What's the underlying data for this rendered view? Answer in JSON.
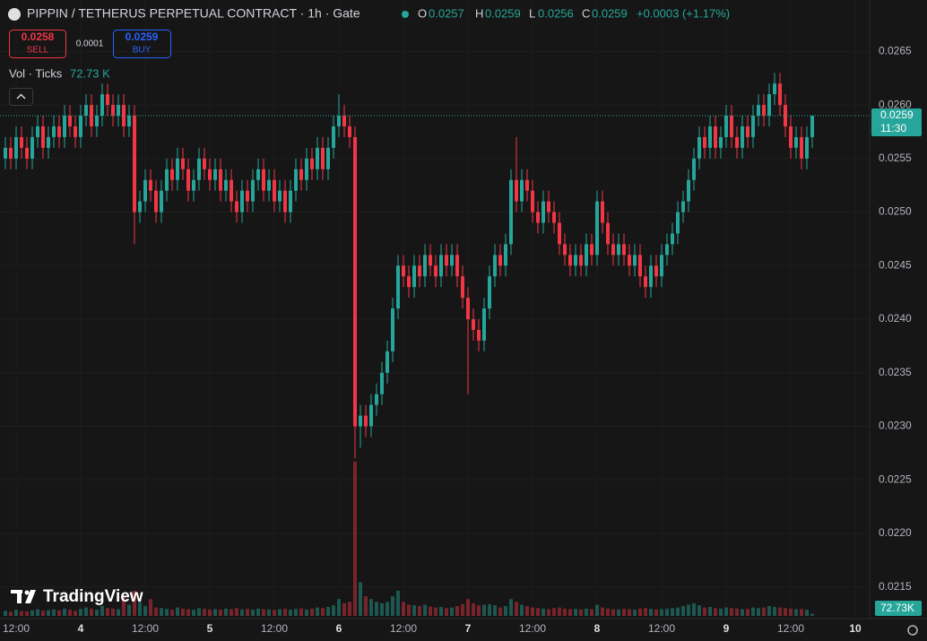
{
  "chart_data": {
    "type": "candlestick",
    "title": "PIPPIN / TETHERUS PERPETUAL CONTRACT · 1h · Gate",
    "ohlc_readout": {
      "open_label": "O",
      "open": 0.0257,
      "high_label": "H",
      "high": 0.0259,
      "low_label": "L",
      "low": 0.0256,
      "close_label": "C",
      "close": 0.0259,
      "change": "+0.0003 (+1.17%)"
    },
    "trade": {
      "sell_price": 0.0258,
      "sell_label": "SELL",
      "spread": 0.0001,
      "buy_price": 0.0259,
      "buy_label": "BUY"
    },
    "volume_readout": {
      "label": "Vol · Ticks",
      "value": "72.73 K",
      "axis_label": "72.73K"
    },
    "last_price": 0.0259,
    "countdown": "11:30",
    "brand": "TradingView",
    "up_color": "#26a69a",
    "down_color": "#f23645",
    "categories": [
      null,
      null,
      "12:00",
      null,
      null,
      null,
      null,
      null,
      null,
      null,
      null,
      null,
      null,
      null,
      "4",
      null,
      null,
      null,
      null,
      null,
      null,
      null,
      null,
      null,
      null,
      null,
      "12:00",
      null,
      null,
      null,
      null,
      null,
      null,
      null,
      null,
      null,
      null,
      null,
      "5",
      null,
      null,
      null,
      null,
      null,
      null,
      null,
      null,
      null,
      null,
      null,
      "12:00",
      null,
      null,
      null,
      null,
      null,
      null,
      null,
      null,
      null,
      null,
      null,
      "6",
      null,
      null,
      null,
      null,
      null,
      null,
      null,
      null,
      null,
      null,
      null,
      "12:00",
      null,
      null,
      null,
      null,
      null,
      null,
      null,
      null,
      null,
      null,
      null,
      "7",
      null,
      null,
      null,
      null,
      null,
      null,
      null,
      null,
      null,
      null,
      null,
      "12:00",
      null,
      null,
      null,
      null,
      null,
      null,
      null,
      null,
      null,
      null,
      null,
      "8",
      null,
      null,
      null,
      null,
      null,
      null,
      null,
      null,
      null,
      null,
      null,
      "12:00",
      null,
      null,
      null,
      null,
      null,
      null,
      null,
      null,
      null,
      null,
      null,
      "9",
      null,
      null,
      null,
      null,
      null,
      null,
      null,
      null,
      null,
      null,
      null,
      "12:00",
      null,
      null,
      null,
      null,
      null,
      null,
      null,
      null,
      null,
      null,
      null,
      "10"
    ],
    "open": [
      0.0255,
      0.0256,
      0.0255,
      0.0257,
      0.0256,
      0.0255,
      0.0257,
      0.0258,
      0.0256,
      0.0257,
      0.0258,
      0.0257,
      0.0259,
      0.0258,
      0.0257,
      0.0259,
      0.026,
      0.0258,
      0.0259,
      0.0261,
      0.026,
      0.0259,
      0.026,
      0.0258,
      0.0259,
      0.025,
      0.0251,
      0.0253,
      0.0252,
      0.025,
      0.0252,
      0.0254,
      0.0253,
      0.0255,
      0.0254,
      0.0252,
      0.0253,
      0.0255,
      0.0254,
      0.0253,
      0.0254,
      0.0252,
      0.0253,
      0.0251,
      0.025,
      0.0252,
      0.0251,
      0.0253,
      0.0254,
      0.0252,
      0.0253,
      0.0251,
      0.0252,
      0.025,
      0.0252,
      0.0254,
      0.0253,
      0.0255,
      0.0254,
      0.0256,
      0.0254,
      0.0256,
      0.0258,
      0.0259,
      0.0258,
      0.0257,
      0.023,
      0.0231,
      0.023,
      0.0232,
      0.0233,
      0.0235,
      0.0237,
      0.0241,
      0.0245,
      0.0244,
      0.0243,
      0.0245,
      0.0244,
      0.0246,
      0.0245,
      0.0244,
      0.0246,
      0.0245,
      0.0246,
      0.0244,
      0.0242,
      0.024,
      0.0239,
      0.0238,
      0.0241,
      0.0244,
      0.0246,
      0.0245,
      0.0247,
      0.0253,
      0.0251,
      0.0253,
      0.0252,
      0.025,
      0.0249,
      0.0251,
      0.025,
      0.0249,
      0.0247,
      0.0246,
      0.0245,
      0.0246,
      0.0245,
      0.0247,
      0.0246,
      0.0251,
      0.0249,
      0.0247,
      0.0246,
      0.0247,
      0.0246,
      0.0245,
      0.0246,
      0.0244,
      0.0243,
      0.0245,
      0.0244,
      0.0246,
      0.0247,
      0.0248,
      0.025,
      0.0251,
      0.0253,
      0.0255,
      0.0257,
      0.0256,
      0.0258,
      0.0256,
      0.0257,
      0.0259,
      0.0257,
      0.0256,
      0.0258,
      0.0257,
      0.0259,
      0.026,
      0.0259,
      0.0261,
      0.0262,
      0.026,
      0.0258,
      0.0256,
      0.0257,
      0.0255,
      0.0257,
      null,
      null,
      null,
      null,
      null,
      null,
      null,
      null
    ],
    "high": [
      0.0257,
      0.0257,
      0.0258,
      0.0258,
      0.0257,
      0.0258,
      0.0259,
      0.0259,
      0.0258,
      0.0259,
      0.0259,
      0.026,
      0.026,
      0.0259,
      0.026,
      0.0261,
      0.0261,
      0.026,
      0.0262,
      0.0262,
      0.0261,
      0.0261,
      0.0261,
      0.026,
      0.026,
      0.0252,
      0.0254,
      0.0254,
      0.0253,
      0.0253,
      0.0255,
      0.0255,
      0.0256,
      0.0256,
      0.0255,
      0.0254,
      0.0256,
      0.0256,
      0.0255,
      0.0255,
      0.0255,
      0.0254,
      0.0254,
      0.0252,
      0.0253,
      0.0253,
      0.0254,
      0.0255,
      0.0255,
      0.0254,
      0.0254,
      0.0253,
      0.0253,
      0.0253,
      0.0255,
      0.0255,
      0.0256,
      0.0256,
      0.0257,
      0.0257,
      0.0257,
      0.0259,
      0.0261,
      0.026,
      0.0259,
      0.0258,
      0.0232,
      0.0232,
      0.0233,
      0.0234,
      0.0236,
      0.0238,
      0.0242,
      0.0246,
      0.0246,
      0.0245,
      0.0246,
      0.0246,
      0.0247,
      0.0247,
      0.0246,
      0.0247,
      0.0247,
      0.0247,
      0.0247,
      0.0245,
      0.0243,
      0.0241,
      0.024,
      0.0242,
      0.0245,
      0.0247,
      0.0247,
      0.0248,
      0.0254,
      0.0257,
      0.0254,
      0.0254,
      0.0253,
      0.0251,
      0.0252,
      0.0252,
      0.0251,
      0.025,
      0.0248,
      0.0247,
      0.0247,
      0.0247,
      0.0248,
      0.0248,
      0.0252,
      0.0252,
      0.025,
      0.0248,
      0.0248,
      0.0248,
      0.0247,
      0.0247,
      0.0247,
      0.0245,
      0.0246,
      0.0246,
      0.0247,
      0.0248,
      0.0249,
      0.0251,
      0.0252,
      0.0254,
      0.0256,
      0.0258,
      0.0258,
      0.0259,
      0.0259,
      0.0258,
      0.026,
      0.026,
      0.0258,
      0.0259,
      0.0259,
      0.026,
      0.0261,
      0.0261,
      0.0262,
      0.0263,
      0.0263,
      0.0261,
      0.0259,
      0.0258,
      0.0258,
      0.0258,
      0.0259,
      null,
      null,
      null,
      null,
      null,
      null,
      null,
      null
    ],
    "low": [
      0.0254,
      0.0254,
      0.0254,
      0.0255,
      0.0254,
      0.0254,
      0.0256,
      0.0255,
      0.0255,
      0.0256,
      0.0256,
      0.0256,
      0.0257,
      0.0256,
      0.0256,
      0.0258,
      0.0257,
      0.0257,
      0.0258,
      0.0259,
      0.0258,
      0.0258,
      0.0257,
      0.0257,
      0.0247,
      0.0249,
      0.025,
      0.0251,
      0.0249,
      0.0249,
      0.0251,
      0.0252,
      0.0252,
      0.0253,
      0.0251,
      0.0251,
      0.0252,
      0.0253,
      0.0252,
      0.0252,
      0.0251,
      0.0251,
      0.025,
      0.0249,
      0.0249,
      0.025,
      0.025,
      0.0252,
      0.0251,
      0.0251,
      0.025,
      0.025,
      0.0249,
      0.0249,
      0.0251,
      0.0252,
      0.0252,
      0.0253,
      0.0253,
      0.0253,
      0.0253,
      0.0255,
      0.0257,
      0.0257,
      0.0256,
      0.0227,
      0.0228,
      0.0229,
      0.0229,
      0.0231,
      0.0232,
      0.0234,
      0.0236,
      0.024,
      0.0243,
      0.0242,
      0.0242,
      0.0243,
      0.0243,
      0.0244,
      0.0243,
      0.0243,
      0.0244,
      0.0244,
      0.0243,
      0.0241,
      0.0233,
      0.0238,
      0.0237,
      0.0237,
      0.024,
      0.0243,
      0.0244,
      0.0244,
      0.0246,
      0.025,
      0.025,
      0.0251,
      0.0249,
      0.0248,
      0.0248,
      0.0249,
      0.0248,
      0.0246,
      0.0245,
      0.0244,
      0.0244,
      0.0244,
      0.0244,
      0.0245,
      0.0245,
      0.0248,
      0.0246,
      0.0245,
      0.0245,
      0.0245,
      0.0244,
      0.0244,
      0.0243,
      0.0242,
      0.0242,
      0.0243,
      0.0243,
      0.0245,
      0.0246,
      0.0247,
      0.0249,
      0.025,
      0.0252,
      0.0254,
      0.0255,
      0.0255,
      0.0255,
      0.0255,
      0.0256,
      0.0256,
      0.0255,
      0.0255,
      0.0256,
      0.0256,
      0.0258,
      0.0258,
      0.0258,
      0.026,
      0.0259,
      0.0257,
      0.0255,
      0.0255,
      0.0254,
      0.0254,
      0.0256,
      null,
      null,
      null,
      null,
      null,
      null,
      null,
      null
    ],
    "close": [
      0.0256,
      0.0255,
      0.0257,
      0.0256,
      0.0255,
      0.0257,
      0.0258,
      0.0256,
      0.0257,
      0.0258,
      0.0257,
      0.0259,
      0.0258,
      0.0257,
      0.0259,
      0.026,
      0.0258,
      0.0259,
      0.0261,
      0.026,
      0.0259,
      0.026,
      0.0258,
      0.0259,
      0.025,
      0.0251,
      0.0253,
      0.0252,
      0.025,
      0.0252,
      0.0254,
      0.0253,
      0.0255,
      0.0254,
      0.0252,
      0.0253,
      0.0255,
      0.0254,
      0.0253,
      0.0254,
      0.0252,
      0.0253,
      0.0251,
      0.025,
      0.0252,
      0.0251,
      0.0253,
      0.0254,
      0.0252,
      0.0253,
      0.0251,
      0.0252,
      0.025,
      0.0252,
      0.0254,
      0.0253,
      0.0255,
      0.0254,
      0.0256,
      0.0254,
      0.0256,
      0.0258,
      0.0259,
      0.0258,
      0.0257,
      0.023,
      0.0231,
      0.023,
      0.0232,
      0.0233,
      0.0235,
      0.0237,
      0.0241,
      0.0245,
      0.0244,
      0.0243,
      0.0245,
      0.0244,
      0.0246,
      0.0245,
      0.0244,
      0.0246,
      0.0245,
      0.0246,
      0.0244,
      0.0242,
      0.024,
      0.0239,
      0.0238,
      0.0241,
      0.0244,
      0.0246,
      0.0245,
      0.0247,
      0.0253,
      0.0251,
      0.0253,
      0.0252,
      0.025,
      0.0249,
      0.0251,
      0.025,
      0.0249,
      0.0247,
      0.0246,
      0.0245,
      0.0246,
      0.0245,
      0.0247,
      0.0246,
      0.0251,
      0.0249,
      0.0247,
      0.0246,
      0.0247,
      0.0246,
      0.0245,
      0.0246,
      0.0244,
      0.0243,
      0.0245,
      0.0244,
      0.0246,
      0.0247,
      0.0248,
      0.025,
      0.0251,
      0.0253,
      0.0255,
      0.0257,
      0.0256,
      0.0258,
      0.0256,
      0.0257,
      0.0259,
      0.0257,
      0.0256,
      0.0258,
      0.0257,
      0.0259,
      0.026,
      0.0259,
      0.0261,
      0.0262,
      0.026,
      0.0258,
      0.0256,
      0.0257,
      0.0255,
      0.0257,
      0.0259,
      null,
      null,
      null,
      null,
      null,
      null,
      null,
      null
    ],
    "volume": [
      180,
      150,
      220,
      170,
      160,
      200,
      240,
      190,
      210,
      230,
      200,
      260,
      220,
      180,
      250,
      300,
      260,
      220,
      350,
      280,
      260,
      240,
      700,
      400,
      900,
      500,
      350,
      600,
      300,
      280,
      250,
      220,
      300,
      260,
      240,
      220,
      280,
      250,
      230,
      240,
      220,
      260,
      240,
      280,
      230,
      250,
      220,
      260,
      240,
      230,
      210,
      240,
      260,
      220,
      250,
      270,
      230,
      260,
      300,
      280,
      320,
      380,
      600,
      450,
      500,
      5500,
      1200,
      700,
      600,
      500,
      450,
      500,
      700,
      900,
      500,
      400,
      380,
      350,
      400,
      330,
      300,
      320,
      280,
      300,
      350,
      420,
      600,
      450,
      380,
      400,
      420,
      380,
      300,
      350,
      600,
      500,
      400,
      350,
      300,
      280,
      260,
      240,
      280,
      300,
      260,
      240,
      250,
      230,
      260,
      240,
      400,
      300,
      260,
      240,
      230,
      250,
      240,
      220,
      260,
      280,
      250,
      230,
      240,
      260,
      280,
      300,
      350,
      400,
      450,
      380,
      300,
      320,
      280,
      260,
      300,
      280,
      260,
      240,
      250,
      300,
      280,
      300,
      350,
      320,
      300,
      280,
      260,
      240,
      250,
      220,
      72.73,
      null,
      null,
      null,
      null,
      null,
      null,
      null,
      null
    ],
    "ylim": [
      0.02123,
      0.02698
    ],
    "yticks": [
      0.0265,
      {
        "value": 0.026,
        "label": "0.0260"
      },
      0.0255,
      {
        "value": 0.025,
        "label": "0.0250"
      },
      0.0245,
      {
        "value": 0.024,
        "label": "0.0240"
      },
      0.0235,
      {
        "value": 0.023,
        "label": "0.0230"
      },
      0.0225,
      {
        "value": 0.022,
        "label": "0.0220"
      },
      0.0215
    ],
    "grid": true
  }
}
